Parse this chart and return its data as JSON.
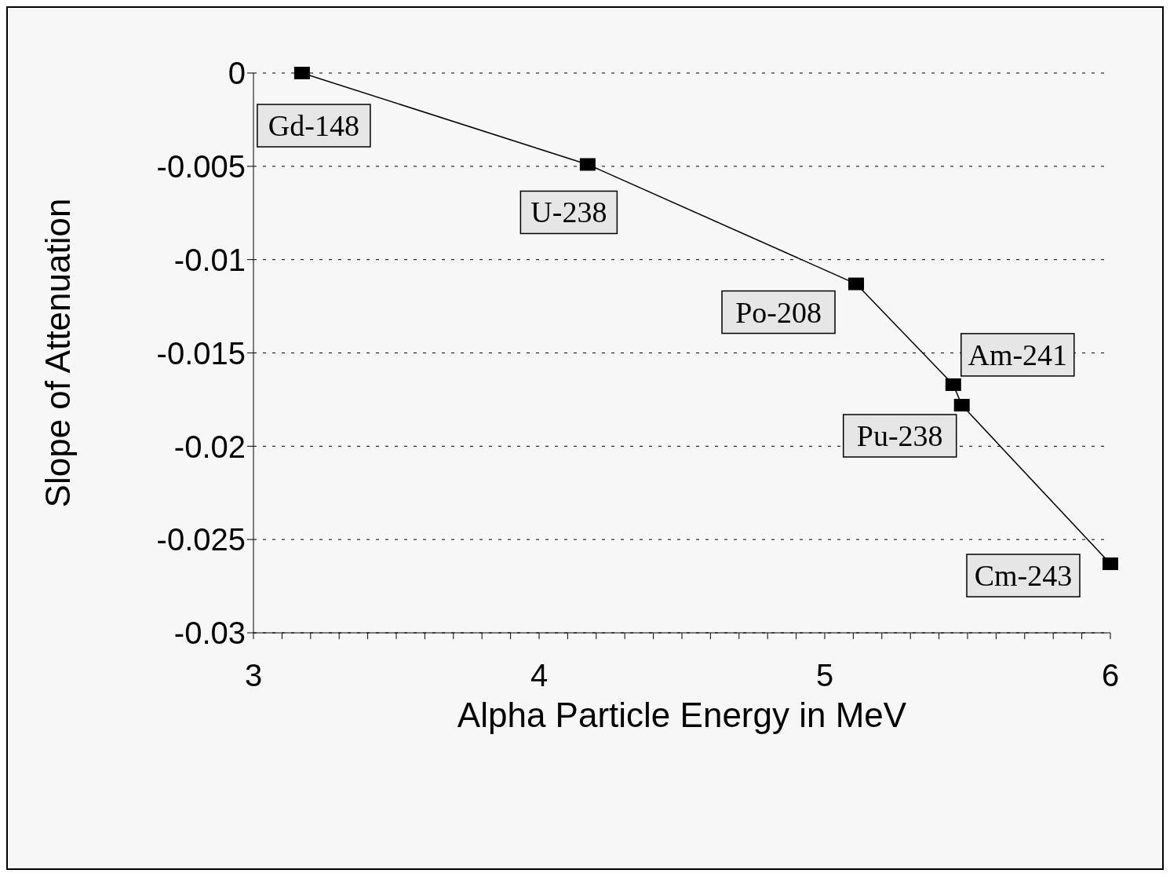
{
  "chart_data": {
    "type": "line",
    "xlabel": "Alpha Particle Energy in MeV",
    "ylabel": "Slope of Attenuation",
    "x": [
      3.17,
      4.17,
      5.11,
      5.45,
      5.48,
      6.0
    ],
    "series": [
      {
        "color": "#000000",
        "values": [
          0,
          -0.0049,
          -0.0113,
          -0.0167,
          -0.0178,
          -0.0263
        ]
      }
    ],
    "xlim": [
      3,
      6
    ],
    "xticks": [
      3,
      {
        "value": 3.1,
        "label": null
      },
      {
        "value": 3.2,
        "label": null
      },
      {
        "value": 3.3,
        "label": null
      },
      {
        "value": 3.4,
        "label": null
      },
      {
        "value": 3.5,
        "label": null
      },
      {
        "value": 3.6,
        "label": null
      },
      {
        "value": 3.7,
        "label": null
      },
      {
        "value": 3.8,
        "label": null
      },
      {
        "value": 3.9,
        "label": null
      },
      4,
      {
        "value": 4.1,
        "label": null
      },
      {
        "value": 4.2,
        "label": null
      },
      {
        "value": 4.3,
        "label": null
      },
      {
        "value": 4.4,
        "label": null
      },
      {
        "value": 4.5,
        "label": null
      },
      {
        "value": 4.6,
        "label": null
      },
      {
        "value": 4.7,
        "label": null
      },
      {
        "value": 4.8,
        "label": null
      },
      {
        "value": 4.9,
        "label": null
      },
      5,
      {
        "value": 5.1,
        "label": null
      },
      {
        "value": 5.2,
        "label": null
      },
      {
        "value": 5.3,
        "label": null
      },
      {
        "value": 5.4,
        "label": null
      },
      {
        "value": 5.5,
        "label": null
      },
      {
        "value": 5.6,
        "label": null
      },
      {
        "value": 5.7,
        "label": null
      },
      {
        "value": 5.8,
        "label": null
      },
      {
        "value": 5.9,
        "label": null
      },
      6
    ],
    "ylim": [
      -0.03,
      0
    ],
    "yticks": [
      -0.03,
      -0.025,
      -0.02,
      -0.015,
      -0.01,
      -0.005,
      0
    ],
    "grid": "y",
    "marker": "square",
    "line_style": "solid",
    "legend": false,
    "annotations": [
      {
        "text": "Gd-148",
        "x": 3.17,
        "y": 0
      },
      {
        "text": "U-238",
        "x": 4.17,
        "y": -0.0049
      },
      {
        "text": "Po-208",
        "x": 5.11,
        "y": -0.0113
      },
      {
        "text": "Am-241",
        "x": 5.45,
        "y": -0.0167
      },
      {
        "text": "Pu-238",
        "x": 5.48,
        "y": -0.0178
      },
      {
        "text": "Cm-243",
        "x": 6.0,
        "y": -0.0263
      }
    ]
  }
}
